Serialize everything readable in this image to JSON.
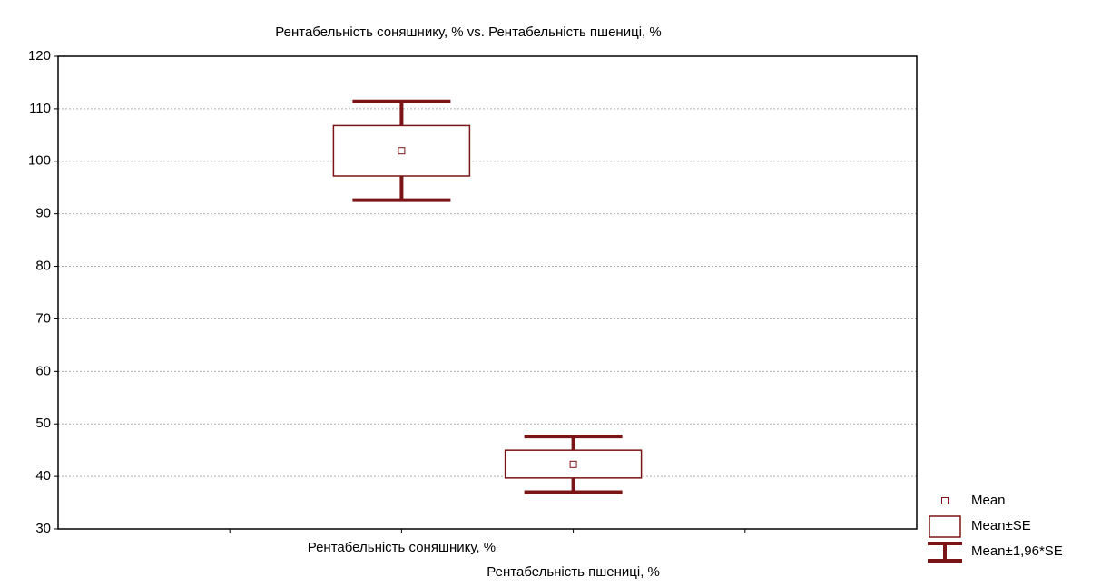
{
  "chart_data": {
    "type": "box",
    "title": "Рентабельність соняшнику, % vs. Рентабельність пшениці, %",
    "categories": [
      "Рентабельність соняшнику, %",
      "Рентабельність пшениці, %"
    ],
    "color": "#7b1416",
    "series": [
      {
        "name": "Рентабельність соняшнику, %",
        "mean": 102,
        "box_low": 97.2,
        "box_high": 106.8,
        "whisker_low": 92.6,
        "whisker_high": 111.4
      },
      {
        "name": "Рентабельність пшениці, %",
        "mean": 42.3,
        "box_low": 39.7,
        "box_high": 45,
        "whisker_low": 37,
        "whisker_high": 47.6
      }
    ],
    "legend": [
      "Mean",
      "Mean±SE",
      "Mean±1,96*SE"
    ],
    "ylim": [
      30,
      120
    ],
    "yticks": [
      30,
      40,
      50,
      60,
      70,
      80,
      90,
      100,
      110,
      120
    ],
    "grid": true
  }
}
